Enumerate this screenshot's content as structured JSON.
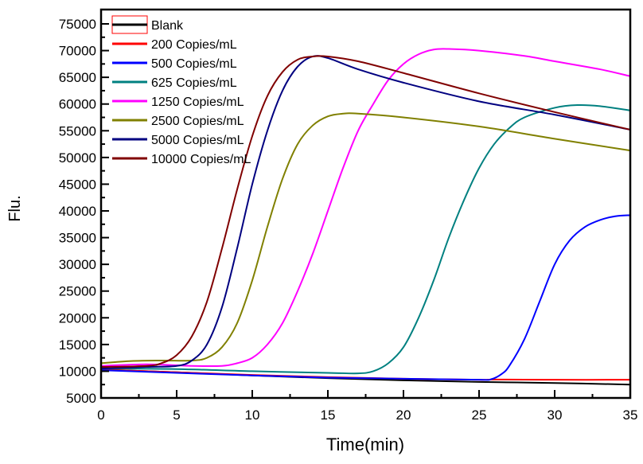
{
  "chart_data": {
    "type": "line",
    "title": "",
    "xlabel": "Time(min)",
    "ylabel": "Flu.",
    "xlim": [
      0,
      35
    ],
    "ylim": [
      5000,
      75000
    ],
    "xticks": [
      0,
      5,
      10,
      15,
      20,
      25,
      30,
      35
    ],
    "yticks": [
      5000,
      10000,
      15000,
      20000,
      25000,
      30000,
      35000,
      40000,
      45000,
      50000,
      55000,
      60000,
      65000,
      70000,
      75000
    ],
    "grid": false,
    "legend_position": "top-left",
    "series": [
      {
        "name": "Blank",
        "color": "#000000",
        "points": [
          [
            0,
            10300
          ],
          [
            5,
            9800
          ],
          [
            10,
            9200
          ],
          [
            15,
            8700
          ],
          [
            20,
            8300
          ],
          [
            25,
            8000
          ],
          [
            30,
            7800
          ],
          [
            35,
            7500
          ]
        ]
      },
      {
        "name": "200 Copies/mL",
        "color": "#ff0000",
        "points": [
          [
            0,
            10300
          ],
          [
            5,
            9800
          ],
          [
            10,
            9300
          ],
          [
            15,
            8900
          ],
          [
            20,
            8600
          ],
          [
            25,
            8400
          ],
          [
            26,
            8450
          ],
          [
            30,
            8400
          ],
          [
            35,
            8400
          ]
        ]
      },
      {
        "name": "500 Copies/mL",
        "color": "#0000ff",
        "points": [
          [
            0,
            10200
          ],
          [
            5,
            9700
          ],
          [
            10,
            9200
          ],
          [
            15,
            8800
          ],
          [
            20,
            8600
          ],
          [
            25,
            8400
          ],
          [
            25.8,
            8500
          ],
          [
            26.5,
            9500
          ],
          [
            27,
            11000
          ],
          [
            28,
            16000
          ],
          [
            29,
            23000
          ],
          [
            30,
            30000
          ],
          [
            31,
            34500
          ],
          [
            32,
            37000
          ],
          [
            33,
            38300
          ],
          [
            34,
            39000
          ],
          [
            35,
            39200
          ]
        ]
      },
      {
        "name": "625 Copies/mL",
        "color": "#008080",
        "points": [
          [
            0,
            10500
          ],
          [
            5,
            10400
          ],
          [
            10,
            10000
          ],
          [
            15,
            9700
          ],
          [
            17,
            9600
          ],
          [
            18,
            10000
          ],
          [
            19,
            11500
          ],
          [
            20,
            14500
          ],
          [
            21,
            20000
          ],
          [
            22,
            27000
          ],
          [
            23,
            35000
          ],
          [
            24,
            42000
          ],
          [
            25,
            48000
          ],
          [
            26,
            52500
          ],
          [
            27,
            55500
          ],
          [
            28,
            57500
          ],
          [
            30,
            59300
          ],
          [
            31.5,
            59800
          ],
          [
            33,
            59600
          ],
          [
            35,
            58800
          ]
        ]
      },
      {
        "name": "1250 Copies/mL",
        "color": "#ff00ff",
        "points": [
          [
            0,
            11000
          ],
          [
            3,
            11300
          ],
          [
            6,
            11000
          ],
          [
            8,
            11000
          ],
          [
            9,
            11500
          ],
          [
            10,
            12500
          ],
          [
            11,
            15000
          ],
          [
            12,
            19000
          ],
          [
            13,
            25000
          ],
          [
            14,
            32000
          ],
          [
            15,
            40000
          ],
          [
            16,
            48000
          ],
          [
            17,
            55000
          ],
          [
            18,
            60000
          ],
          [
            19,
            64500
          ],
          [
            20,
            67500
          ],
          [
            21,
            69300
          ],
          [
            22,
            70200
          ],
          [
            23,
            70300
          ],
          [
            25,
            70000
          ],
          [
            28,
            69000
          ],
          [
            30,
            68000
          ],
          [
            33,
            66500
          ],
          [
            35,
            65200
          ]
        ]
      },
      {
        "name": "2500 Copies/mL",
        "color": "#808000",
        "points": [
          [
            0,
            11500
          ],
          [
            2,
            11900
          ],
          [
            4,
            12000
          ],
          [
            6,
            12000
          ],
          [
            7,
            12500
          ],
          [
            8,
            14500
          ],
          [
            9,
            19000
          ],
          [
            10,
            27000
          ],
          [
            11,
            37000
          ],
          [
            12,
            46000
          ],
          [
            13,
            52500
          ],
          [
            14,
            56000
          ],
          [
            15,
            57700
          ],
          [
            16,
            58200
          ],
          [
            17,
            58200
          ],
          [
            20,
            57500
          ],
          [
            25,
            55800
          ],
          [
            30,
            53500
          ],
          [
            35,
            51300
          ]
        ]
      },
      {
        "name": "5000 Copies/mL",
        "color": "#000080",
        "points": [
          [
            0,
            10500
          ],
          [
            3,
            10800
          ],
          [
            5,
            11000
          ],
          [
            6,
            12000
          ],
          [
            7,
            15000
          ],
          [
            8,
            22000
          ],
          [
            9,
            33000
          ],
          [
            10,
            45000
          ],
          [
            11,
            55000
          ],
          [
            12,
            62500
          ],
          [
            13,
            67000
          ],
          [
            14,
            68900
          ],
          [
            15,
            68600
          ],
          [
            17,
            66500
          ],
          [
            20,
            64000
          ],
          [
            25,
            60500
          ],
          [
            30,
            58000
          ],
          [
            35,
            55200
          ]
        ]
      },
      {
        "name": "10000 Copies/mL",
        "color": "#800000",
        "points": [
          [
            0,
            10800
          ],
          [
            3,
            11000
          ],
          [
            4,
            11500
          ],
          [
            5,
            13000
          ],
          [
            6,
            16500
          ],
          [
            7,
            23000
          ],
          [
            8,
            33000
          ],
          [
            9,
            44000
          ],
          [
            10,
            54000
          ],
          [
            11,
            61500
          ],
          [
            12,
            66000
          ],
          [
            13,
            68300
          ],
          [
            14,
            68900
          ],
          [
            15,
            68900
          ],
          [
            17,
            68000
          ],
          [
            20,
            65800
          ],
          [
            25,
            62000
          ],
          [
            30,
            58500
          ],
          [
            35,
            55200
          ]
        ]
      }
    ]
  }
}
